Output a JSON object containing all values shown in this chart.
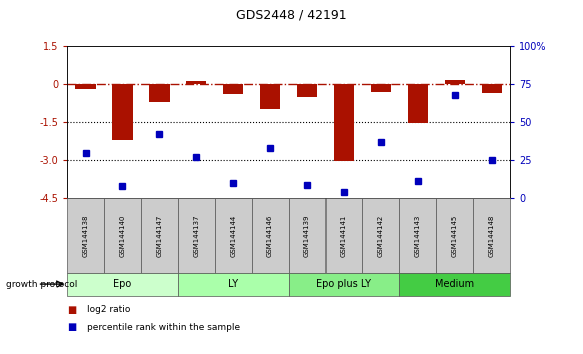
{
  "title": "GDS2448 / 42191",
  "samples": [
    "GSM144138",
    "GSM144140",
    "GSM144147",
    "GSM144137",
    "GSM144144",
    "GSM144146",
    "GSM144139",
    "GSM144141",
    "GSM144142",
    "GSM144143",
    "GSM144145",
    "GSM144148"
  ],
  "log2_ratio": [
    -0.2,
    -2.2,
    -0.7,
    0.12,
    -0.4,
    -1.0,
    -0.5,
    -3.05,
    -0.3,
    -1.55,
    0.18,
    -0.35
  ],
  "percentile_rank": [
    30,
    8,
    42,
    27,
    10,
    33,
    9,
    4,
    37,
    11,
    68,
    25
  ],
  "groups": [
    {
      "label": "Epo",
      "start": 0,
      "end": 3,
      "color": "#ccffcc"
    },
    {
      "label": "LY",
      "start": 3,
      "end": 6,
      "color": "#aaffaa"
    },
    {
      "label": "Epo plus LY",
      "start": 6,
      "end": 9,
      "color": "#88ee88"
    },
    {
      "label": "Medium",
      "start": 9,
      "end": 12,
      "color": "#44cc44"
    }
  ],
  "bar_color": "#aa1100",
  "dot_color": "#0000bb",
  "ylim_left": [
    -4.5,
    1.5
  ],
  "ylim_right": [
    0,
    100
  ],
  "yticks_left": [
    1.5,
    0,
    -1.5,
    -3.0,
    -4.5
  ],
  "yticks_right": [
    100,
    75,
    50,
    25,
    0
  ],
  "hline_y": 0,
  "dotted_lines": [
    -1.5,
    -3.0
  ],
  "bar_width": 0.55,
  "sample_box_color": "#cccccc",
  "background_color": "#ffffff"
}
